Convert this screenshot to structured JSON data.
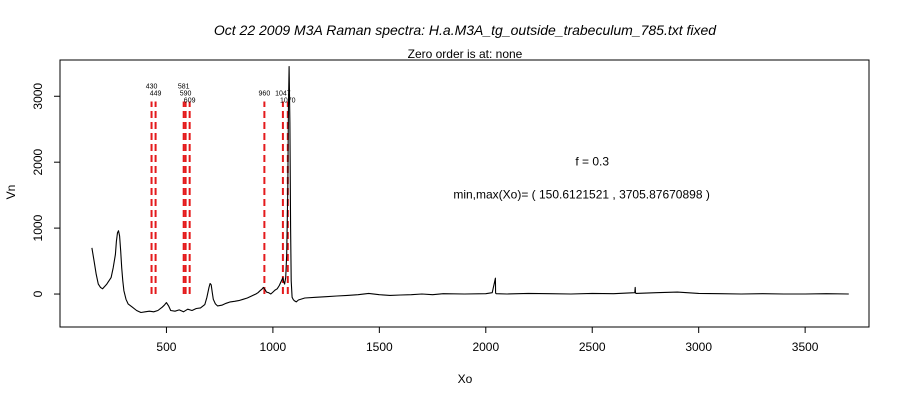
{
  "chart_data": {
    "type": "line",
    "title": "Oct 22 2009 M3A Raman spectra: H.a.M3A_tg_outside_trabeculum_785.txt fixed",
    "subtitle": "Zero order is at:  none",
    "xlabel": "Xo",
    "ylabel": "Vn",
    "xlim": [
      0,
      3800
    ],
    "ylim": [
      -500,
      3550
    ],
    "xticks": [
      500,
      1000,
      1500,
      2000,
      2500,
      3000,
      3500
    ],
    "yticks": [
      0,
      1000,
      2000,
      3000
    ],
    "grid": false,
    "legend": "none",
    "annotations": [
      {
        "text": "f =  0.3",
        "x": 2500,
        "y": 1950
      },
      {
        "text": "min,max(Xo)= ( 150.6121521 , 3705.87670898 )",
        "x": 2450,
        "y": 1450
      }
    ],
    "peak_markers": {
      "color": "#e41a1c",
      "y_range": [
        0,
        2920
      ],
      "peaks": [
        {
          "x": 430,
          "label": "430"
        },
        {
          "x": 449,
          "label": "449"
        },
        {
          "x": 581,
          "label": "581"
        },
        {
          "x": 590,
          "label": "590"
        },
        {
          "x": 609,
          "label": "609"
        },
        {
          "x": 960,
          "label": "960"
        },
        {
          "x": 1047,
          "label": "1047"
        },
        {
          "x": 1070,
          "label": "1070"
        }
      ]
    },
    "series": [
      {
        "color": "#000000",
        "x": [
          150,
          160,
          170,
          180,
          190,
          200,
          220,
          240,
          250,
          260,
          265,
          270,
          275,
          280,
          285,
          290,
          295,
          300,
          310,
          320,
          340,
          360,
          380,
          400,
          420,
          440,
          460,
          480,
          490,
          500,
          510,
          520,
          540,
          560,
          580,
          600,
          620,
          640,
          660,
          680,
          690,
          700,
          705,
          710,
          715,
          720,
          730,
          740,
          760,
          780,
          800,
          820,
          840,
          860,
          880,
          900,
          920,
          930,
          940,
          950,
          955,
          960,
          965,
          970,
          980,
          990,
          1000,
          1010,
          1020,
          1030,
          1040,
          1047,
          1050,
          1055,
          1060,
          1065,
          1070,
          1073,
          1076,
          1080,
          1083,
          1086,
          1090,
          1095,
          1100,
          1110,
          1120,
          1150,
          1200,
          1250,
          1300,
          1350,
          1400,
          1450,
          1500,
          1550,
          1600,
          1650,
          1700,
          1750,
          1800,
          1900,
          2000,
          2030,
          2045,
          2046,
          2047,
          2050,
          2100,
          2200,
          2300,
          2400,
          2500,
          2600,
          2700,
          2702,
          2703,
          2705,
          2800,
          2900,
          3000,
          3100,
          3200,
          3300,
          3400,
          3500,
          3600,
          3705
        ],
        "y": [
          700,
          500,
          300,
          150,
          100,
          80,
          150,
          250,
          400,
          600,
          800,
          930,
          960,
          880,
          650,
          400,
          200,
          50,
          -80,
          -150,
          -200,
          -250,
          -280,
          -270,
          -260,
          -270,
          -250,
          -200,
          -170,
          -130,
          -180,
          -250,
          -260,
          -240,
          -270,
          -230,
          -250,
          -220,
          -210,
          -160,
          -50,
          100,
          160,
          140,
          30,
          -80,
          -150,
          -180,
          -170,
          -140,
          -120,
          -110,
          -100,
          -80,
          -60,
          -30,
          0,
          20,
          50,
          80,
          100,
          80,
          60,
          30,
          20,
          0,
          30,
          60,
          80,
          130,
          200,
          250,
          200,
          150,
          250,
          600,
          1600,
          2800,
          3450,
          2600,
          1000,
          200,
          -50,
          -80,
          -100,
          -120,
          -90,
          -60,
          -50,
          -40,
          -30,
          -20,
          -10,
          10,
          -10,
          -20,
          -15,
          -10,
          0,
          -10,
          5,
          0,
          5,
          20,
          240,
          20,
          10,
          5,
          0,
          10,
          5,
          0,
          10,
          5,
          20,
          100,
          20,
          10,
          20,
          30,
          10,
          5,
          0,
          5,
          0,
          0,
          5,
          0
        ]
      }
    ]
  }
}
